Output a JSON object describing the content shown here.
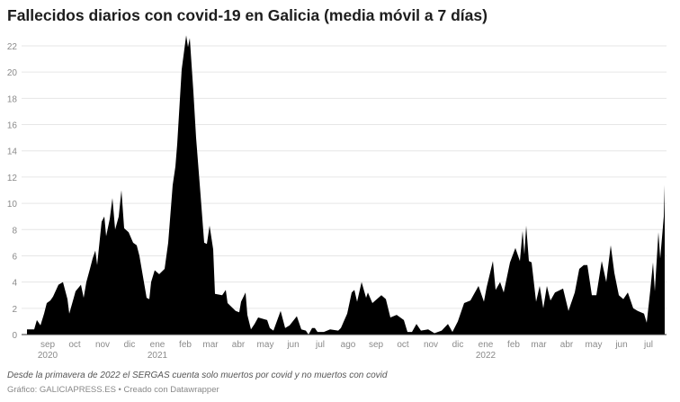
{
  "chart_data": {
    "type": "area",
    "title": "Fallecidos diarios con covid-19 en Galicia (media móvil a 7 días)",
    "xlabel": "",
    "ylabel": "",
    "ylim": [
      0,
      22
    ],
    "yticks": [
      0,
      2,
      4,
      6,
      8,
      10,
      12,
      14,
      16,
      18,
      20,
      22
    ],
    "xlim": [
      "2020-08-09",
      "2022-07-19"
    ],
    "grid": true,
    "fill_color": "#000000",
    "xticks": [
      {
        "date": "2020-09-01",
        "label": "sep",
        "year": "2020"
      },
      {
        "date": "2020-10-01",
        "label": "oct"
      },
      {
        "date": "2020-11-01",
        "label": "nov"
      },
      {
        "date": "2020-12-01",
        "label": "dic"
      },
      {
        "date": "2021-01-01",
        "label": "ene",
        "year": "2021"
      },
      {
        "date": "2021-02-01",
        "label": "feb"
      },
      {
        "date": "2021-03-01",
        "label": "mar"
      },
      {
        "date": "2021-04-01",
        "label": "abr"
      },
      {
        "date": "2021-05-01",
        "label": "may"
      },
      {
        "date": "2021-06-01",
        "label": "jun"
      },
      {
        "date": "2021-07-01",
        "label": "jul"
      },
      {
        "date": "2021-08-01",
        "label": "ago"
      },
      {
        "date": "2021-09-01",
        "label": "sep"
      },
      {
        "date": "2021-10-01",
        "label": "oct"
      },
      {
        "date": "2021-11-01",
        "label": "nov"
      },
      {
        "date": "2021-12-01",
        "label": "dic"
      },
      {
        "date": "2022-01-01",
        "label": "ene",
        "year": "2022"
      },
      {
        "date": "2022-02-01",
        "label": "feb"
      },
      {
        "date": "2022-03-01",
        "label": "mar"
      },
      {
        "date": "2022-04-01",
        "label": "abr"
      },
      {
        "date": "2022-05-01",
        "label": "may"
      },
      {
        "date": "2022-06-01",
        "label": "jun"
      },
      {
        "date": "2022-07-01",
        "label": "jul"
      }
    ],
    "points": [
      [
        "2020-08-09",
        0.4
      ],
      [
        "2020-08-17",
        0.4
      ],
      [
        "2020-08-20",
        1.1
      ],
      [
        "2020-08-24",
        0.7
      ],
      [
        "2020-08-28",
        1.6
      ],
      [
        "2020-08-31",
        2.4
      ],
      [
        "2020-09-04",
        2.6
      ],
      [
        "2020-09-07",
        2.9
      ],
      [
        "2020-09-13",
        3.8
      ],
      [
        "2020-09-18",
        4.0
      ],
      [
        "2020-09-23",
        2.7
      ],
      [
        "2020-09-25",
        1.6
      ],
      [
        "2020-09-30",
        2.8
      ],
      [
        "2020-10-02",
        3.3
      ],
      [
        "2020-10-08",
        3.8
      ],
      [
        "2020-10-11",
        2.8
      ],
      [
        "2020-10-14",
        4.0
      ],
      [
        "2020-10-18",
        5.0
      ],
      [
        "2020-10-21",
        5.8
      ],
      [
        "2020-10-24",
        6.4
      ],
      [
        "2020-10-26",
        5.3
      ],
      [
        "2020-10-31",
        8.6
      ],
      [
        "2020-11-03",
        9.0
      ],
      [
        "2020-11-05",
        7.5
      ],
      [
        "2020-11-09",
        8.8
      ],
      [
        "2020-11-12",
        10.4
      ],
      [
        "2020-11-15",
        8.0
      ],
      [
        "2020-11-19",
        9.0
      ],
      [
        "2020-11-22",
        11.0
      ],
      [
        "2020-11-25",
        8.1
      ],
      [
        "2020-11-30",
        7.8
      ],
      [
        "2020-12-05",
        7.0
      ],
      [
        "2020-12-09",
        6.8
      ],
      [
        "2020-12-12",
        6.0
      ],
      [
        "2020-12-15",
        4.8
      ],
      [
        "2020-12-20",
        2.8
      ],
      [
        "2020-12-23",
        2.7
      ],
      [
        "2020-12-25",
        4.0
      ],
      [
        "2020-12-29",
        4.9
      ],
      [
        "2021-01-03",
        4.6
      ],
      [
        "2021-01-09",
        5.0
      ],
      [
        "2021-01-13",
        7.0
      ],
      [
        "2021-01-18",
        11.4
      ],
      [
        "2021-01-21",
        12.8
      ],
      [
        "2021-01-23",
        14.5
      ],
      [
        "2021-01-28",
        20.2
      ],
      [
        "2021-02-02",
        22.8
      ],
      [
        "2021-02-04",
        21.9
      ],
      [
        "2021-02-06",
        22.6
      ],
      [
        "2021-02-10",
        18.5
      ],
      [
        "2021-02-13",
        15.0
      ],
      [
        "2021-02-18",
        10.6
      ],
      [
        "2021-02-22",
        7.0
      ],
      [
        "2021-02-25",
        6.9
      ],
      [
        "2021-02-28",
        8.3
      ],
      [
        "2021-03-04",
        6.5
      ],
      [
        "2021-03-06",
        3.1
      ],
      [
        "2021-03-14",
        3.0
      ],
      [
        "2021-03-18",
        3.4
      ],
      [
        "2021-03-20",
        2.4
      ],
      [
        "2021-03-29",
        1.8
      ],
      [
        "2021-04-02",
        1.7
      ],
      [
        "2021-04-04",
        2.5
      ],
      [
        "2021-04-09",
        3.2
      ],
      [
        "2021-04-11",
        1.5
      ],
      [
        "2021-04-15",
        0.4
      ],
      [
        "2021-04-19",
        0.8
      ],
      [
        "2021-04-23",
        1.3
      ],
      [
        "2021-05-03",
        1.1
      ],
      [
        "2021-05-06",
        0.5
      ],
      [
        "2021-05-10",
        0.3
      ],
      [
        "2021-05-18",
        1.8
      ],
      [
        "2021-05-23",
        0.5
      ],
      [
        "2021-05-28",
        0.7
      ],
      [
        "2021-06-05",
        1.4
      ],
      [
        "2021-06-10",
        0.4
      ],
      [
        "2021-06-15",
        0.3
      ],
      [
        "2021-06-18",
        0.0
      ],
      [
        "2021-06-22",
        0.5
      ],
      [
        "2021-06-25",
        0.5
      ],
      [
        "2021-06-28",
        0.2
      ],
      [
        "2021-07-05",
        0.2
      ],
      [
        "2021-07-12",
        0.4
      ],
      [
        "2021-07-21",
        0.3
      ],
      [
        "2021-07-24",
        0.5
      ],
      [
        "2021-07-31",
        1.6
      ],
      [
        "2021-08-05",
        3.2
      ],
      [
        "2021-08-08",
        3.4
      ],
      [
        "2021-08-11",
        2.5
      ],
      [
        "2021-08-16",
        4.0
      ],
      [
        "2021-08-21",
        2.8
      ],
      [
        "2021-08-23",
        3.2
      ],
      [
        "2021-08-28",
        2.4
      ],
      [
        "2021-09-07",
        3.0
      ],
      [
        "2021-09-12",
        2.7
      ],
      [
        "2021-09-17",
        1.3
      ],
      [
        "2021-09-24",
        1.5
      ],
      [
        "2021-10-02",
        1.1
      ],
      [
        "2021-10-06",
        0.2
      ],
      [
        "2021-10-11",
        0.2
      ],
      [
        "2021-10-16",
        0.8
      ],
      [
        "2021-10-21",
        0.3
      ],
      [
        "2021-10-29",
        0.4
      ],
      [
        "2021-11-05",
        0.1
      ],
      [
        "2021-11-13",
        0.3
      ],
      [
        "2021-11-20",
        0.8
      ],
      [
        "2021-11-25",
        0.2
      ],
      [
        "2021-12-01",
        1.0
      ],
      [
        "2021-12-08",
        2.4
      ],
      [
        "2021-12-15",
        2.6
      ],
      [
        "2021-12-24",
        3.7
      ],
      [
        "2021-12-30",
        2.5
      ],
      [
        "2022-01-02",
        3.6
      ],
      [
        "2022-01-09",
        5.6
      ],
      [
        "2022-01-12",
        3.4
      ],
      [
        "2022-01-17",
        4.0
      ],
      [
        "2022-01-21",
        3.2
      ],
      [
        "2022-01-28",
        5.5
      ],
      [
        "2022-02-03",
        6.6
      ],
      [
        "2022-02-08",
        5.6
      ],
      [
        "2022-02-11",
        7.9
      ],
      [
        "2022-02-13",
        6.1
      ],
      [
        "2022-02-15",
        8.3
      ],
      [
        "2022-02-18",
        5.6
      ],
      [
        "2022-02-21",
        5.5
      ],
      [
        "2022-02-26",
        2.5
      ],
      [
        "2022-03-02",
        3.7
      ],
      [
        "2022-03-06",
        2.0
      ],
      [
        "2022-03-10",
        3.7
      ],
      [
        "2022-03-14",
        2.6
      ],
      [
        "2022-03-19",
        3.2
      ],
      [
        "2022-03-28",
        3.5
      ],
      [
        "2022-04-03",
        1.8
      ],
      [
        "2022-04-10",
        3.2
      ],
      [
        "2022-04-15",
        5.0
      ],
      [
        "2022-04-20",
        5.3
      ],
      [
        "2022-04-24",
        5.3
      ],
      [
        "2022-04-29",
        3.0
      ],
      [
        "2022-05-04",
        3.0
      ],
      [
        "2022-05-10",
        5.6
      ],
      [
        "2022-05-15",
        4.0
      ],
      [
        "2022-05-20",
        6.8
      ],
      [
        "2022-05-24",
        4.7
      ],
      [
        "2022-05-29",
        3.0
      ],
      [
        "2022-06-03",
        2.7
      ],
      [
        "2022-06-08",
        3.2
      ],
      [
        "2022-06-14",
        2.0
      ],
      [
        "2022-06-19",
        1.8
      ],
      [
        "2022-06-26",
        1.6
      ],
      [
        "2022-06-29",
        0.9
      ],
      [
        "2022-07-03",
        3.4
      ],
      [
        "2022-07-06",
        5.5
      ],
      [
        "2022-07-08",
        3.3
      ],
      [
        "2022-07-12",
        7.8
      ],
      [
        "2022-07-14",
        5.8
      ],
      [
        "2022-07-18",
        9.0
      ],
      [
        "2022-07-19",
        11.4
      ]
    ]
  },
  "notes": {
    "description": "Desde la primavera de 2022 el SERGAS cuenta solo muertos por covid y no muertos con covid",
    "source": "Gráfico: GALICIAPRESS.ES • Creado con Datawrapper"
  }
}
